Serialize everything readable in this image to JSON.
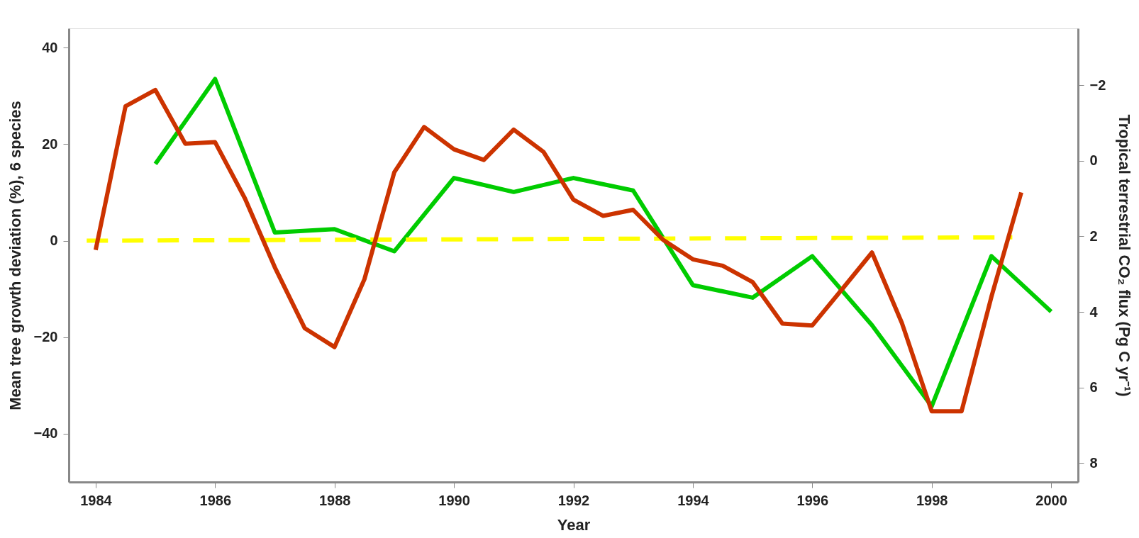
{
  "chart_data": {
    "type": "line",
    "xlabel": "Year",
    "ylabel": "Mean tree growth deviation (%), 6 species",
    "y2label": "Tropical terrestrial CO₂ flux (Pg C yr⁻¹)",
    "xlim": [
      1983.55,
      2000.45
    ],
    "xticks": [
      1984,
      1986,
      1988,
      1990,
      1992,
      1994,
      1996,
      1998,
      2000
    ],
    "ylim": [
      -50,
      44
    ],
    "yticks": [
      -40,
      -20,
      0,
      20,
      40
    ],
    "y2lim": [
      8.5,
      -3.5
    ],
    "y2ticks": [
      -2,
      0,
      2,
      4,
      6,
      8
    ],
    "grid": false,
    "marker": "none",
    "series": [
      {
        "color": "#00cc00",
        "x": [
          1985,
          1986,
          1987,
          1988,
          1989,
          1990,
          1991,
          1992,
          1993,
          1994,
          1995,
          1996,
          1997,
          1998,
          1999,
          2000
        ],
        "values": [
          15.9,
          33.5,
          1.7,
          2.4,
          -2.2,
          13.0,
          10.1,
          13.0,
          10.4,
          -9.2,
          -11.8,
          -3.2,
          -17.5,
          -34.3,
          -3.2,
          -14.7
        ]
      },
      {
        "color": "#cc3300",
        "axis": "y2",
        "x": [
          1984,
          1984.5,
          1985,
          1985.5,
          1986,
          1986.5,
          1987,
          1987.5,
          1988,
          1988.5,
          1989,
          1989.5,
          1990,
          1990.5,
          1991,
          1991.5,
          1992,
          1992.5,
          1993,
          1993.5,
          1994,
          1994.5,
          1995,
          1995.5,
          1996,
          1996.5,
          1997,
          1997.5,
          1998,
          1998.5,
          1999,
          1999.5
        ],
        "values": [
          2.36,
          -1.44,
          -1.87,
          -0.45,
          -0.49,
          1.0,
          2.82,
          4.43,
          4.93,
          3.14,
          0.31,
          -0.89,
          -0.3,
          -0.02,
          -0.82,
          -0.23,
          1.03,
          1.46,
          1.3,
          2.09,
          2.61,
          2.78,
          3.21,
          4.31,
          4.36,
          3.4,
          2.43,
          4.29,
          6.63,
          6.63,
          3.6,
          0.84
        ]
      },
      {
        "color": "#ffff00",
        "line_style": "dashed",
        "x": [
          1983.85,
          1999.35
        ],
        "values": [
          0,
          0.7
        ]
      }
    ]
  }
}
